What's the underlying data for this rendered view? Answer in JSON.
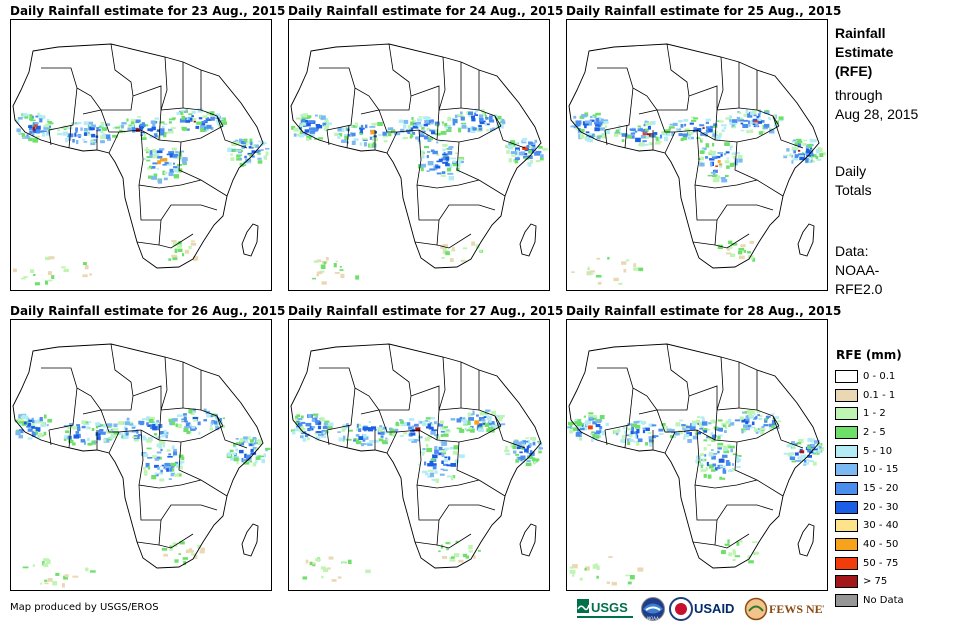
{
  "panels": [
    {
      "title": "Daily Rainfall estimate for 23 Aug., 2015"
    },
    {
      "title": "Daily Rainfall estimate for 24 Aug., 2015"
    },
    {
      "title": "Daily Rainfall estimate for 25 Aug., 2015"
    },
    {
      "title": "Daily Rainfall estimate for 26 Aug., 2015"
    },
    {
      "title": "Daily Rainfall estimate for 27 Aug., 2015"
    },
    {
      "title": "Daily Rainfall estimate for 28 Aug., 2015"
    }
  ],
  "side": {
    "heading": [
      "Rainfall",
      "Estimate",
      "(RFE)"
    ],
    "period": [
      "through",
      "Aug 28, 2015"
    ],
    "totals": [
      "Daily",
      "Totals"
    ],
    "data": [
      "Data:",
      "NOAA-",
      "RFE2.0"
    ]
  },
  "legend": {
    "title": "RFE (mm)",
    "items": [
      {
        "label": "0 - 0.1",
        "color": "#ffffff"
      },
      {
        "label": "0.1 - 1",
        "color": "#e9d8b3"
      },
      {
        "label": "1 - 2",
        "color": "#bff5b3"
      },
      {
        "label": "2 - 5",
        "color": "#6ee06a"
      },
      {
        "label": "5 - 10",
        "color": "#b3ecf5"
      },
      {
        "label": "10 - 15",
        "color": "#7cb9f2"
      },
      {
        "label": "15 - 20",
        "color": "#4a8ded"
      },
      {
        "label": "20 - 30",
        "color": "#1a5fe6"
      },
      {
        "label": "30 - 40",
        "color": "#fde48a"
      },
      {
        "label": "40 - 50",
        "color": "#f7a21b"
      },
      {
        "label": "50 - 75",
        "color": "#f23c0c"
      },
      {
        "label": "> 75",
        "color": "#a3161a"
      },
      {
        "label": "No Data",
        "color": "#969696"
      }
    ]
  },
  "footer": {
    "credit": "Map produced by USGS/EROS",
    "logos": [
      "USGS",
      "NOAA",
      "USAID",
      "FEWS NET"
    ]
  }
}
